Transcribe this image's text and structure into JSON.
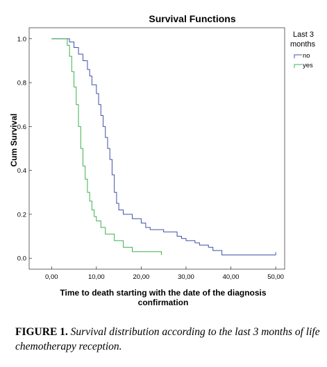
{
  "figure": {
    "caption_label": "FIGURE 1.",
    "caption_text": "Survival distribution according to the last 3 months of life chemotherapy reception."
  },
  "chart_data": {
    "type": "line",
    "title": "Survival Functions",
    "xlabel": "Time to death starting with the date of the diagnosis confirmation",
    "ylabel": "Cum Survival",
    "xlim": [
      -5,
      52
    ],
    "ylim": [
      -0.05,
      1.05
    ],
    "x_ticks": [
      0,
      10,
      20,
      30,
      40,
      50
    ],
    "x_tick_labels": [
      "0,00",
      "10,00",
      "20,00",
      "30,00",
      "40,00",
      "50,00"
    ],
    "y_ticks": [
      0.0,
      0.2,
      0.4,
      0.6,
      0.8,
      1.0
    ],
    "y_tick_labels": [
      "0.0",
      "0.2",
      "0.4",
      "0.6",
      "0.8",
      "1.0"
    ],
    "grid": false,
    "legend": {
      "title": "Last 3 months",
      "position": "outside-right",
      "entries": [
        "no",
        "yes"
      ]
    },
    "colors": {
      "no": "#3f50a8",
      "yes": "#3cb04f"
    },
    "series": [
      {
        "name": "no",
        "step": true,
        "censored_end": true,
        "x": [
          0,
          4,
          5,
          6,
          7,
          8,
          8.5,
          9,
          10,
          10.5,
          11,
          11.5,
          12,
          12.5,
          13,
          13.5,
          14,
          14.5,
          15,
          16,
          18,
          20,
          21,
          22,
          25,
          28,
          29,
          30,
          32,
          33,
          35,
          36,
          38,
          50
        ],
        "y": [
          1.0,
          0.985,
          0.96,
          0.93,
          0.9,
          0.86,
          0.83,
          0.79,
          0.75,
          0.7,
          0.65,
          0.6,
          0.55,
          0.5,
          0.45,
          0.38,
          0.3,
          0.25,
          0.22,
          0.2,
          0.18,
          0.16,
          0.14,
          0.13,
          0.12,
          0.1,
          0.09,
          0.08,
          0.07,
          0.06,
          0.05,
          0.035,
          0.015,
          0.015
        ]
      },
      {
        "name": "yes",
        "step": true,
        "censored_end": true,
        "x": [
          0,
          3.5,
          4,
          4.5,
          5,
          5.5,
          6,
          6.5,
          7,
          7.5,
          8,
          8.5,
          9,
          9.5,
          10,
          11,
          12,
          14,
          16,
          18,
          24.5
        ],
        "y": [
          1.0,
          0.97,
          0.92,
          0.85,
          0.78,
          0.7,
          0.6,
          0.5,
          0.42,
          0.36,
          0.3,
          0.26,
          0.22,
          0.19,
          0.17,
          0.14,
          0.11,
          0.08,
          0.05,
          0.03,
          0.015
        ]
      }
    ]
  }
}
